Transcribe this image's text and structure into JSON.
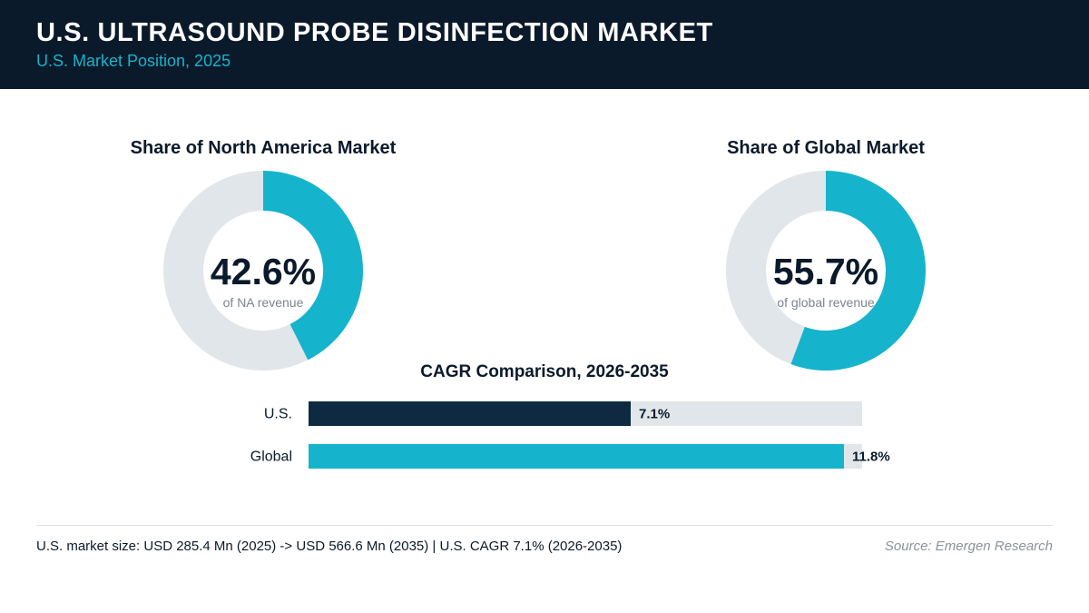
{
  "header": {
    "title": "U.S. ULTRASOUND PROBE DISINFECTION MARKET",
    "subtitle": "U.S. Market Position, 2025"
  },
  "colors": {
    "accent": "#15b4cc",
    "dark": "#0d2a42",
    "track": "#e1e6ea",
    "header_bg": "#0b1a2a"
  },
  "chart_data": [
    {
      "type": "pie",
      "title": "Share of North America Market",
      "value": 42.6,
      "value_label": "42.6%",
      "caption": "of NA revenue"
    },
    {
      "type": "pie",
      "title": "Share of Global Market",
      "value": 55.7,
      "value_label": "55.7%",
      "caption": "of global revenue"
    },
    {
      "type": "bar",
      "title": "CAGR Comparison, 2026-2035",
      "categories": [
        "U.S.",
        "Global"
      ],
      "values": [
        7.1,
        11.8
      ],
      "value_labels": [
        "7.1%",
        "11.8%"
      ],
      "xlim": [
        0,
        12.2
      ]
    }
  ],
  "footer": {
    "note": "U.S. market size: USD 285.4 Mn (2025) -> USD 566.6 Mn (2035)  |  U.S. CAGR 7.1% (2026-2035)",
    "source": "Source: Emergen Research"
  }
}
